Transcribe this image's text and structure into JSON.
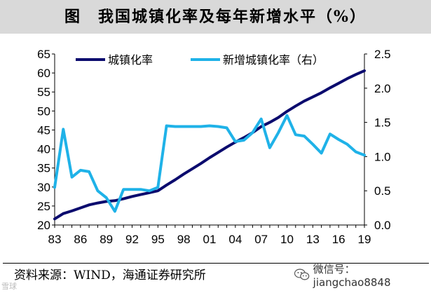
{
  "title": "图　我国城镇化率及每年新增水平（%）",
  "source": "资料来源：WIND，海通证券研究所",
  "wechat": "微信号：jiangchao8848",
  "watermark": "雪球",
  "colors": {
    "urbanization": "#0b0b6e",
    "increase": "#1fb2e8",
    "title_bg": "#d9d9d9"
  },
  "chart_data": {
    "type": "line",
    "title": "我国城镇化率及每年新增水平（%）",
    "x": [
      1983,
      1984,
      1985,
      1986,
      1987,
      1988,
      1989,
      1990,
      1991,
      1992,
      1993,
      1994,
      1995,
      1996,
      1997,
      1998,
      1999,
      2000,
      2001,
      2002,
      2003,
      2004,
      2005,
      2006,
      2007,
      2008,
      2009,
      2010,
      2011,
      2012,
      2013,
      2014,
      2015,
      2016,
      2017,
      2018,
      2019
    ],
    "x_tick_labels": [
      "83",
      "86",
      "89",
      "92",
      "95",
      "98",
      "01",
      "04",
      "07",
      "10",
      "13",
      "16",
      "19"
    ],
    "y_left_lim": [
      20,
      65
    ],
    "y_left_ticks": [
      "20",
      "25",
      "30",
      "35",
      "40",
      "45",
      "50",
      "55",
      "60",
      "65"
    ],
    "y_right_lim": [
      0,
      2.5
    ],
    "y_right_ticks": [
      "0.0",
      "0.5",
      "1.0",
      "1.5",
      "2.0",
      "2.5"
    ],
    "legend_position": "top",
    "series": [
      {
        "name": "城镇化率",
        "axis": "left",
        "values": [
          21.6,
          23.0,
          23.7,
          24.5,
          25.3,
          25.8,
          26.2,
          26.4,
          26.9,
          27.5,
          28.0,
          28.5,
          29.0,
          30.5,
          31.9,
          33.4,
          34.8,
          36.2,
          37.7,
          39.1,
          40.5,
          41.8,
          43.0,
          44.3,
          45.9,
          47.0,
          48.3,
          49.9,
          51.3,
          52.6,
          53.7,
          54.8,
          56.1,
          57.3,
          58.5,
          59.6,
          60.6
        ]
      },
      {
        "name": "新增城镇化率（右）",
        "axis": "right",
        "values": [
          0.55,
          1.4,
          0.7,
          0.8,
          0.78,
          0.5,
          0.4,
          0.2,
          0.52,
          0.52,
          0.52,
          0.5,
          0.55,
          1.45,
          1.44,
          1.44,
          1.44,
          1.44,
          1.45,
          1.44,
          1.42,
          1.22,
          1.24,
          1.35,
          1.55,
          1.13,
          1.35,
          1.6,
          1.32,
          1.3,
          1.18,
          1.05,
          1.33,
          1.25,
          1.18,
          1.07,
          1.02
        ]
      }
    ]
  }
}
